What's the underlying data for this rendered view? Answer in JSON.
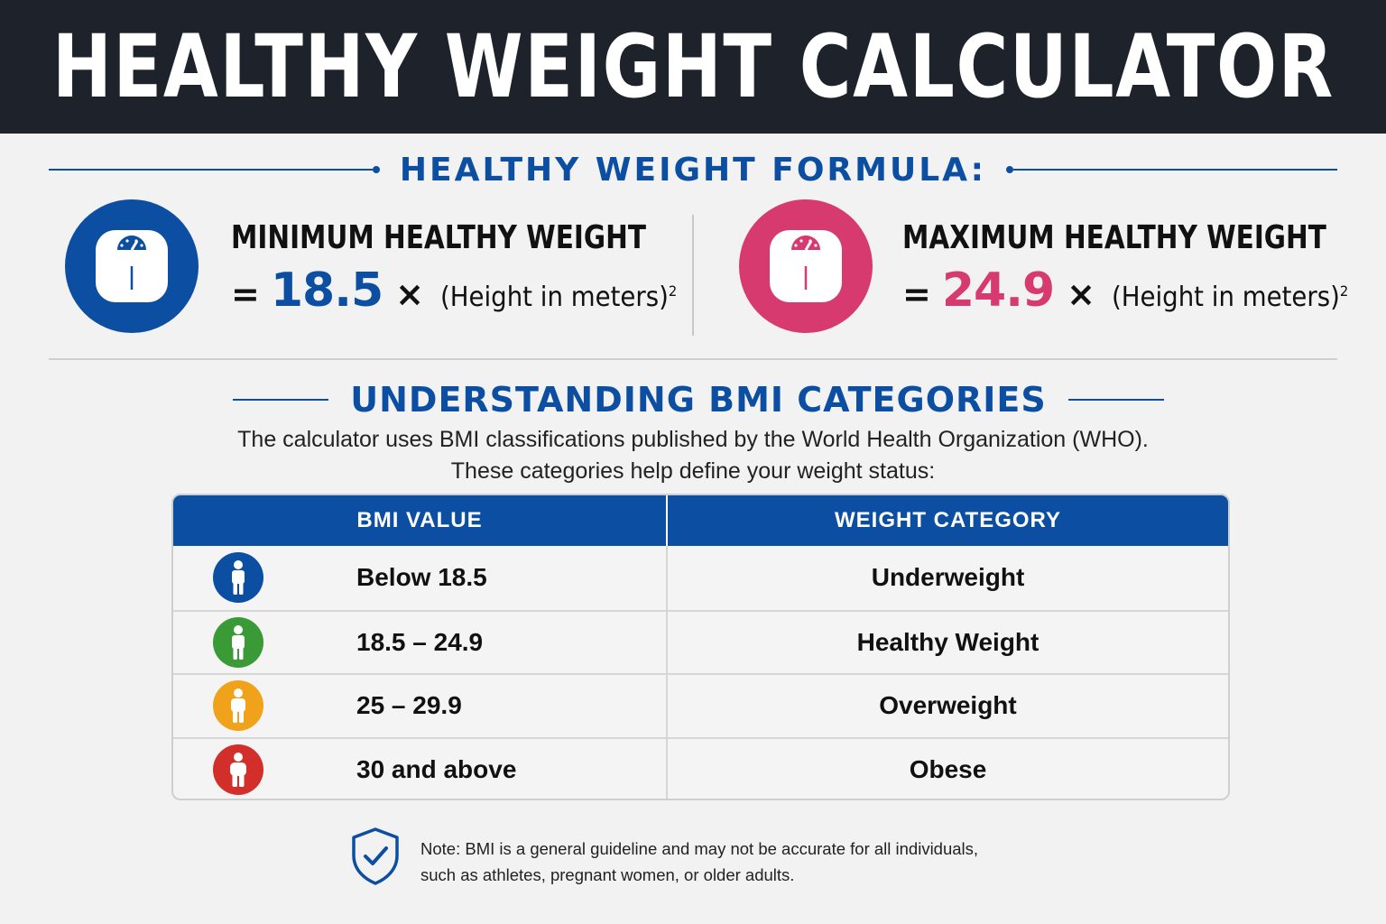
{
  "header": {
    "title": "HEALTHY WEIGHT CALCULATOR"
  },
  "formula": {
    "title": "HEALTHY WEIGHT FORMULA:",
    "min": {
      "label": "MINIMUM HEALTHY WEIGHT",
      "equals": "=",
      "coefficient": "18.5",
      "times": "×",
      "height_text": "(Height in meters)",
      "exponent": "2",
      "color": "#0b4ea2",
      "icon": "scale-icon"
    },
    "max": {
      "label": "MAXIMUM HEALTHY WEIGHT",
      "equals": "=",
      "coefficient": "24.9",
      "times": "×",
      "height_text": "(Height in meters)",
      "exponent": "2",
      "color": "#d63a6f",
      "icon": "scale-icon"
    }
  },
  "bmi": {
    "title": "UNDERSTANDING BMI CATEGORIES",
    "intro_line1": "The calculator uses BMI classifications published by the World Health Organization (WHO).",
    "intro_line2": "These categories help define your weight status:",
    "table": {
      "headers": [
        "BMI VALUE",
        "WEIGHT CATEGORY"
      ],
      "rows": [
        {
          "value": "Below 18.5",
          "category": "Underweight",
          "color": "#0b4ea2",
          "icon": "person-icon"
        },
        {
          "value": "18.5 – 24.9",
          "category": "Healthy Weight",
          "color": "#3a9a35",
          "icon": "person-icon"
        },
        {
          "value": "25 – 29.9",
          "category": "Overweight",
          "color": "#f0a21a",
          "icon": "person-icon"
        },
        {
          "value": "30 and above",
          "category": "Obese",
          "color": "#d32f2a",
          "icon": "person-icon"
        }
      ]
    }
  },
  "note": {
    "line1": "Note: BMI is a general guideline and may not be accurate for all individuals,",
    "line2": "such as athletes, pregnant women, or older adults.",
    "icon": "shield-check-icon"
  }
}
